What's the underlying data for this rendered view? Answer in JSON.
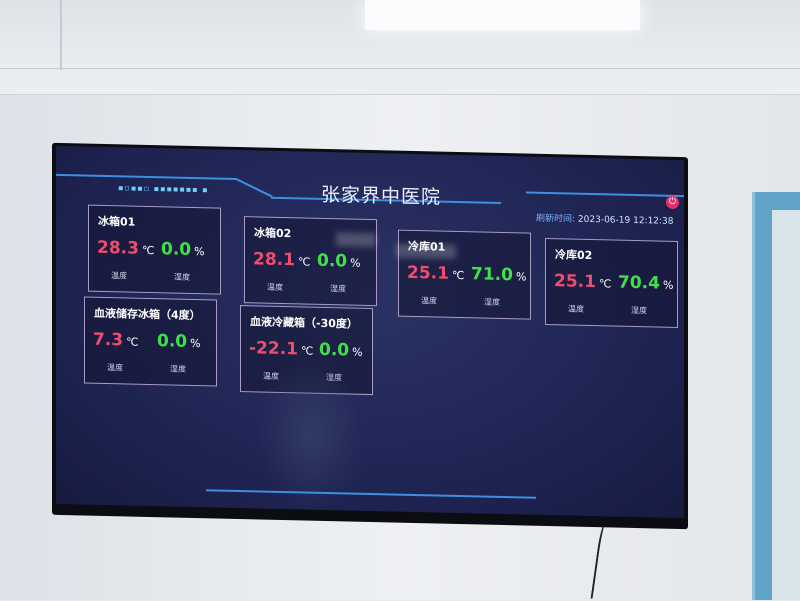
{
  "header": {
    "title": "张家界中医院",
    "refresh_label": "刷新时间:",
    "refresh_time": "2023-06-19 12:12:38",
    "power_icon": "power-icon"
  },
  "colors": {
    "temperature": "#f04c6e",
    "humidity": "#3fe04a",
    "accent": "#3d8fe0",
    "background": "#1d2250"
  },
  "cards": [
    {
      "name": "冰箱01",
      "temp": "28.3",
      "temp_unit": "℃",
      "humidity": "0.0",
      "humidity_unit": "%",
      "temp_label": "温度",
      "humidity_label": "湿度"
    },
    {
      "name": "冰箱02",
      "temp": "28.1",
      "temp_unit": "℃",
      "humidity": "0.0",
      "humidity_unit": "%",
      "temp_label": "温度",
      "humidity_label": "湿度"
    },
    {
      "name": "冷库01",
      "temp": "25.1",
      "temp_unit": "℃",
      "humidity": "71.0",
      "humidity_unit": "%",
      "temp_label": "温度",
      "humidity_label": "湿度"
    },
    {
      "name": "冷库02",
      "temp": "25.1",
      "temp_unit": "℃",
      "humidity": "70.4",
      "humidity_unit": "%",
      "temp_label": "温度",
      "humidity_label": "湿度"
    },
    {
      "name": "血液储存冰箱（4度）",
      "temp": "7.3",
      "temp_unit": "℃",
      "humidity": "0.0",
      "humidity_unit": "%",
      "temp_label": "温度",
      "humidity_label": "湿度"
    },
    {
      "name": "血液冷藏箱（-30度）",
      "temp": "-22.1",
      "temp_unit": "℃",
      "humidity": "0.0",
      "humidity_unit": "%",
      "temp_label": "温度",
      "humidity_label": "湿度"
    }
  ]
}
